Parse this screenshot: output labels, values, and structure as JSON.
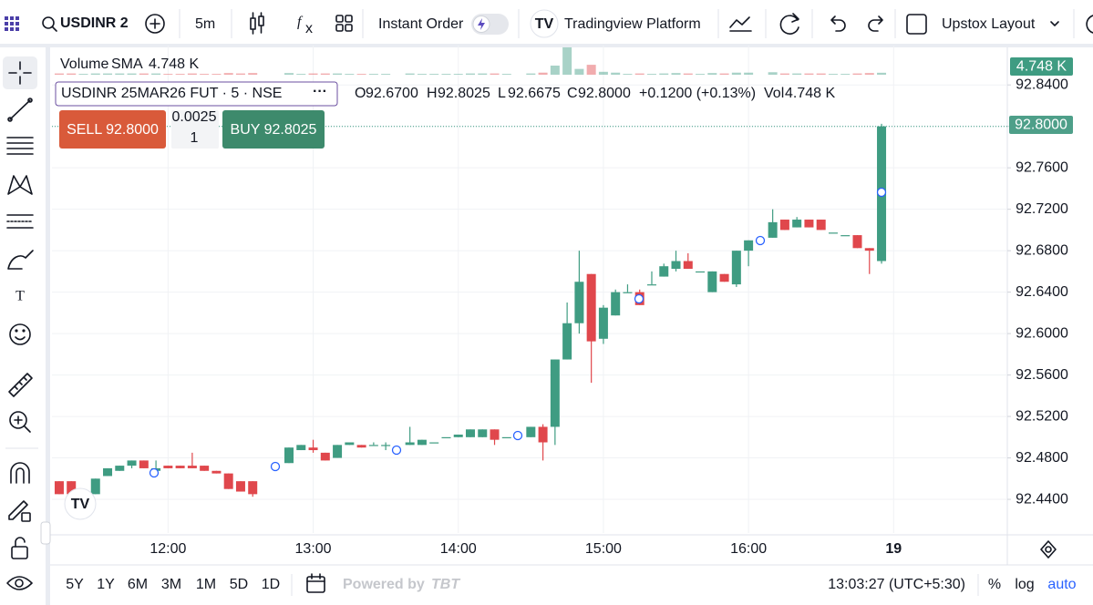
{
  "toolbar": {
    "symbol": "USDINR 2",
    "interval": "5m",
    "instant_order": "Instant Order",
    "platform": "Tradingview Platform",
    "layout": "Upstox Layout"
  },
  "legend": {
    "volume": "Volume",
    "sma": "SMA",
    "volume_value": "4.748 K",
    "symbol": "USDINR 25MAR26 FUT · 5 · NSE",
    "o_label": "O",
    "open": "92.6700",
    "h_label": "H",
    "high": "92.8025",
    "l_label": "L",
    "low": "92.6675",
    "c_label": "C",
    "close": "92.8000",
    "change": "+0.1200 (+0.13%)",
    "vol_label": "Vol",
    "vol": "4.748 K"
  },
  "order": {
    "sell": "SELL 92.8000",
    "step": "0.0025",
    "quantity": "1",
    "buy": "BUY 92.8025"
  },
  "price_tags": {
    "volume": "4.748 K",
    "last": "92.8000"
  },
  "bottom_bar": {
    "ranges": [
      "5Y",
      "1Y",
      "6M",
      "3M",
      "1M",
      "5D",
      "1D"
    ],
    "powered": "Powered by",
    "brand": "TBT",
    "clock": "13:03:27 (UTC+5:30)",
    "percent": "%",
    "log": "log",
    "auto": "auto"
  },
  "chart_data": {
    "type": "candlestick",
    "up_color": "#3f9c82",
    "down_color": "#e0474c",
    "grid": true,
    "x": [
      "11:15",
      "11:20",
      "11:25",
      "11:30",
      "11:35",
      "11:40",
      "11:45",
      "11:50",
      "11:55",
      "12:00",
      "12:05",
      "12:10",
      "12:15",
      "12:20",
      "12:25",
      "12:30",
      "12:35",
      "12:50",
      "12:55",
      "13:00",
      "13:05",
      "13:10",
      "13:15",
      "13:20",
      "13:25",
      "13:30",
      "13:40",
      "13:45",
      "13:50",
      "13:55",
      "14:00",
      "14:05",
      "14:10",
      "14:15",
      "14:20",
      "14:30",
      "14:35",
      "14:40",
      "14:45",
      "14:50",
      "14:55",
      "15:00",
      "15:05",
      "15:10",
      "15:15",
      "15:20",
      "15:25",
      "15:30",
      "15:35",
      "15:40",
      "15:45",
      "15:50",
      "15:55",
      "16:00",
      "16:10",
      "16:15",
      "16:20",
      "16:25",
      "16:30",
      "16:35",
      "16:40",
      "16:45",
      "16:50",
      "16:55"
    ],
    "open": [
      92.4575,
      92.4575,
      92.4475,
      92.445,
      92.4625,
      92.4675,
      92.4725,
      92.4775,
      92.4675,
      92.4725,
      92.4725,
      92.4725,
      92.4725,
      92.4675,
      92.465,
      92.4575,
      92.4575,
      92.475,
      92.4875,
      92.49,
      92.485,
      92.48,
      92.4925,
      92.4925,
      92.4925,
      92.4925,
      92.4925,
      92.4925,
      92.495,
      92.5,
      92.5,
      92.5,
      92.5,
      92.5075,
      92.5,
      92.5,
      92.51,
      92.51,
      92.575,
      92.61,
      92.6575,
      92.595,
      92.6175,
      92.64,
      92.64,
      92.6475,
      92.655,
      92.6625,
      92.67,
      92.66,
      92.64,
      92.6575,
      92.6475,
      92.68,
      92.6925,
      92.71,
      92.7025,
      92.71,
      92.71,
      92.6975,
      92.695,
      92.695,
      92.6825,
      92.67
    ],
    "high": [
      92.4575,
      92.4575,
      92.4475,
      92.46,
      92.47,
      92.4725,
      92.4775,
      92.4775,
      92.4775,
      92.4725,
      92.4725,
      92.485,
      92.4725,
      92.4675,
      92.465,
      92.4575,
      92.4575,
      92.49,
      92.4925,
      92.4975,
      92.485,
      92.4925,
      92.495,
      92.4925,
      92.495,
      92.495,
      92.51,
      92.4975,
      92.495,
      92.5,
      92.5025,
      92.5075,
      92.5075,
      92.5075,
      92.5,
      92.51,
      92.5125,
      92.575,
      92.63,
      92.68,
      92.6575,
      92.6275,
      92.6425,
      92.6475,
      92.6425,
      92.66,
      92.6675,
      92.68,
      92.6775,
      92.66,
      92.66,
      92.6575,
      92.68,
      92.69,
      92.72,
      92.71,
      92.7125,
      92.71,
      92.71,
      92.6975,
      92.695,
      92.695,
      92.6825,
      92.8025
    ],
    "low": [
      92.445,
      92.445,
      92.4425,
      92.445,
      92.4625,
      92.4675,
      92.47,
      92.47,
      92.4625,
      92.47,
      92.47,
      92.47,
      92.4675,
      92.465,
      92.45,
      92.4475,
      92.4425,
      92.475,
      92.4875,
      92.485,
      92.4775,
      92.48,
      92.4925,
      92.49,
      92.4925,
      92.4875,
      92.4925,
      92.4925,
      92.495,
      92.5,
      92.5,
      92.5,
      92.5,
      92.4925,
      92.5,
      92.5,
      92.4775,
      92.4925,
      92.575,
      92.6,
      92.5525,
      92.59,
      92.6175,
      92.64,
      92.6275,
      92.6475,
      92.655,
      92.66,
      92.6625,
      92.66,
      92.64,
      92.65,
      92.645,
      92.665,
      92.6925,
      92.7,
      92.7025,
      92.7025,
      92.7,
      92.6975,
      92.695,
      92.6825,
      92.6575,
      92.6675
    ],
    "close": [
      92.445,
      92.445,
      92.4475,
      92.46,
      92.47,
      92.4725,
      92.4775,
      92.47,
      92.47,
      92.47,
      92.47,
      92.47,
      92.4675,
      92.465,
      92.45,
      92.4475,
      92.445,
      92.49,
      92.4925,
      92.4875,
      92.4775,
      92.4925,
      92.495,
      92.49,
      92.4925,
      92.4925,
      92.495,
      92.4975,
      92.495,
      92.5,
      92.5025,
      92.5075,
      92.5075,
      92.4975,
      92.5,
      92.51,
      92.495,
      92.575,
      92.61,
      92.65,
      92.5925,
      92.625,
      92.64,
      92.64,
      92.6275,
      92.6475,
      92.665,
      92.67,
      92.6625,
      92.66,
      92.66,
      92.65,
      92.68,
      92.69,
      92.7075,
      92.7,
      92.71,
      92.7025,
      92.7,
      92.6975,
      92.695,
      92.6825,
      92.68,
      92.8
    ],
    "volume": [
      3,
      3,
      2,
      3,
      3,
      3,
      3,
      3,
      3,
      2,
      2,
      3,
      2,
      2,
      4,
      3,
      4,
      4,
      2,
      3,
      3,
      3,
      2,
      2,
      2,
      2,
      3,
      2,
      2,
      2,
      2,
      3,
      3,
      3,
      2,
      3,
      5,
      22,
      66,
      14,
      24,
      7,
      5,
      2,
      3,
      2,
      3,
      4,
      3,
      2,
      4,
      3,
      5,
      5,
      6,
      3,
      3,
      3,
      3,
      2,
      2,
      3,
      4,
      4.748
    ],
    "xlim": [
      "11:12",
      "17:47"
    ],
    "xticks": [
      "12:00",
      "13:00",
      "14:00",
      "15:00",
      "16:00",
      {
        "value": "17:00",
        "label": "19"
      }
    ],
    "ylim": [
      92.4075,
      92.878
    ],
    "yticks": [
      {
        "value": 92.44,
        "label": "92.4400"
      },
      {
        "value": 92.48,
        "label": "92.4800"
      },
      {
        "value": 92.52,
        "label": "92.5200"
      },
      {
        "value": 92.56,
        "label": "92.5600"
      },
      {
        "value": 92.6,
        "label": "92.6000"
      },
      {
        "value": 92.64,
        "label": "92.6400"
      },
      {
        "value": 92.68,
        "label": "92.6800"
      },
      {
        "value": 92.72,
        "label": "92.7200"
      },
      {
        "value": 92.76,
        "label": "92.7600"
      },
      {
        "value": 92.8,
        "label": "92.8000"
      },
      {
        "value": 92.84,
        "label": "92.8400"
      }
    ]
  }
}
